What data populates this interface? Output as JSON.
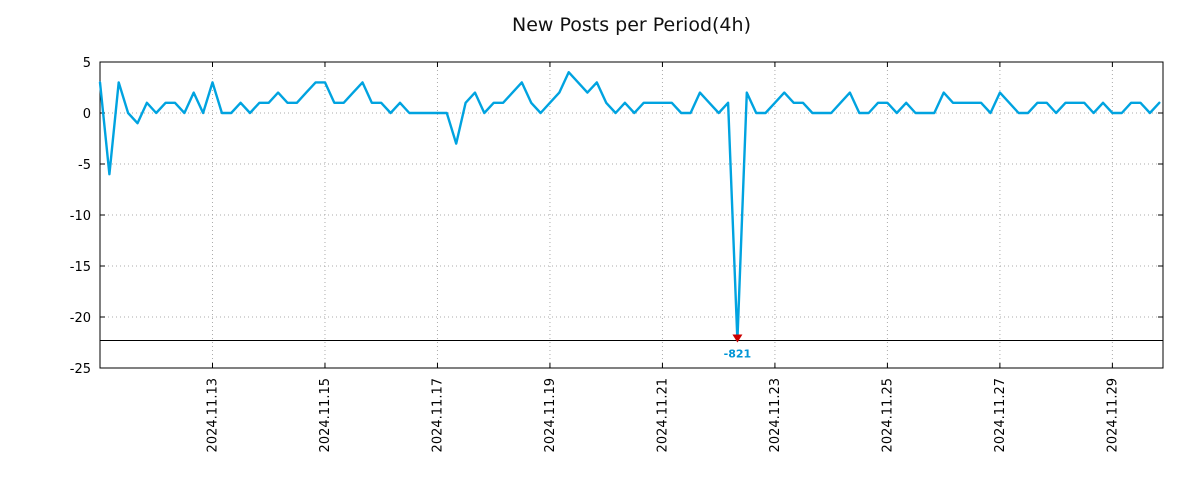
{
  "chart_data": {
    "type": "line",
    "title": "New Posts per Period(4h)",
    "x_axis": {
      "unit": "days",
      "start": 0,
      "end": 18.9,
      "ticks": [
        {
          "pos": 2,
          "label": "2024.11.13"
        },
        {
          "pos": 4,
          "label": "2024.11.15"
        },
        {
          "pos": 6,
          "label": "2024.11.17"
        },
        {
          "pos": 8,
          "label": "2024.11.19"
        },
        {
          "pos": 10,
          "label": "2024.11.21"
        },
        {
          "pos": 12,
          "label": "2024.11.23"
        },
        {
          "pos": 14,
          "label": "2024.11.25"
        },
        {
          "pos": 16,
          "label": "2024.11.27"
        },
        {
          "pos": 18,
          "label": "2024.11.29"
        }
      ]
    },
    "y_axis": {
      "min": -25,
      "max": 5,
      "ticks": [
        5,
        0,
        -5,
        -10,
        -15,
        -20,
        -25
      ]
    },
    "grid": {
      "style": "dotted",
      "color": "#ababab"
    },
    "series": [
      {
        "name": "new_posts_per_period",
        "color": "#00a3e0",
        "x_step_days": 0.1666667,
        "values": [
          3,
          -6,
          3,
          0,
          -1,
          1,
          0,
          1,
          1,
          0,
          2,
          0,
          3,
          0,
          0,
          1,
          0,
          1,
          1,
          2,
          1,
          1,
          2,
          3,
          3,
          1,
          1,
          2,
          3,
          1,
          1,
          0,
          1,
          0,
          0,
          0,
          0,
          0,
          -3,
          1,
          2,
          0,
          1,
          1,
          2,
          3,
          1,
          0,
          1,
          2,
          4,
          3,
          2,
          3,
          1,
          0,
          1,
          0,
          1,
          1,
          1,
          1,
          0,
          0,
          2,
          1,
          0,
          1,
          -821,
          2,
          0,
          0,
          1,
          2,
          1,
          1,
          0,
          0,
          0,
          1,
          2,
          0,
          0,
          1,
          1,
          0,
          1,
          0,
          0,
          0,
          2,
          1,
          1,
          1,
          1,
          0,
          2,
          1,
          0,
          0,
          1,
          1,
          0,
          1,
          1,
          1,
          0,
          1,
          0,
          0,
          1,
          1,
          0,
          1
        ]
      }
    ],
    "floor_line": {
      "value": -22.3,
      "color": "#000000"
    },
    "min_annotation": {
      "value": -821,
      "label": "-821",
      "marker": "triangle-down",
      "marker_color": "#cc0000",
      "label_color": "#0095d6"
    }
  }
}
